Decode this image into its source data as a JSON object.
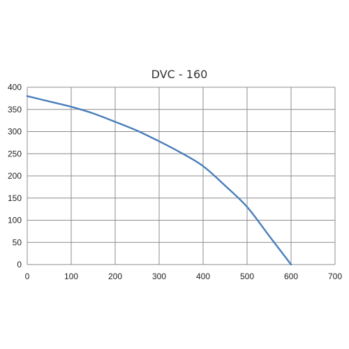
{
  "chart_data": {
    "type": "line",
    "title": "DVC - 160",
    "xlabel": "",
    "ylabel": "",
    "xlim": [
      0,
      700
    ],
    "ylim": [
      0,
      400
    ],
    "x_ticks": [
      0,
      100,
      200,
      300,
      400,
      500,
      600,
      700
    ],
    "y_ticks": [
      0,
      50,
      100,
      150,
      200,
      250,
      300,
      350,
      400
    ],
    "grid": true,
    "series": [
      {
        "color": "#4a7eba",
        "points": [
          [
            0,
            380
          ],
          [
            50,
            368
          ],
          [
            100,
            356
          ],
          [
            150,
            341
          ],
          [
            200,
            322
          ],
          [
            250,
            302
          ],
          [
            300,
            278
          ],
          [
            350,
            252
          ],
          [
            400,
            222
          ],
          [
            450,
            178
          ],
          [
            500,
            130
          ],
          [
            550,
            65
          ],
          [
            600,
            0
          ]
        ]
      }
    ]
  }
}
